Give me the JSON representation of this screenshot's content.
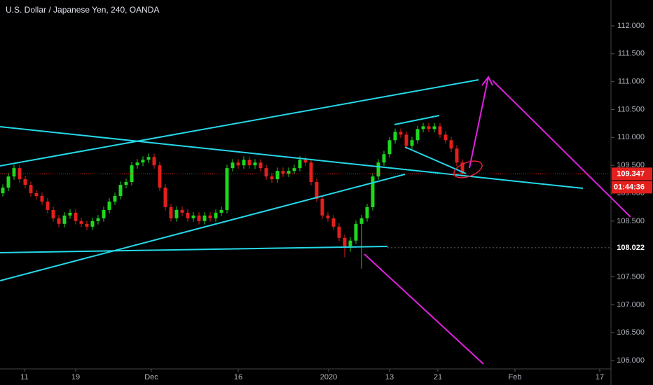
{
  "chart_data": {
    "type": "candlestick",
    "title": "U.S. Dollar / Japanese Yen, 240, OANDA",
    "up_color": "#1fd81f",
    "down_color": "#e3201d",
    "xlim": [
      -0.5,
      108.25
    ],
    "xticks": [
      {
        "value": 3.875,
        "label": "11"
      },
      {
        "value": 13,
        "label": "19"
      },
      {
        "value": 26.5,
        "label": "Dec"
      },
      {
        "value": 42,
        "label": "16"
      },
      {
        "value": 58.125,
        "label": "2020"
      },
      {
        "value": 69,
        "label": "13"
      },
      {
        "value": 77.625,
        "label": "21"
      },
      {
        "value": 91.375,
        "label": "Feb"
      },
      {
        "value": 106.5,
        "label": "17"
      }
    ],
    "ylim": [
      105.85,
      112.464
    ],
    "yticks": [
      {
        "value": 106,
        "label": "106.000"
      },
      {
        "value": 106.5,
        "label": "106.500"
      },
      {
        "value": 107,
        "label": "107.000"
      },
      {
        "value": 107.5,
        "label": "107.500"
      },
      {
        "value": 108,
        "label": "108.000"
      },
      {
        "value": 108.5,
        "label": "108.500"
      },
      {
        "value": 109,
        "label": "109.000"
      },
      {
        "value": 109.5,
        "label": "109.500"
      },
      {
        "value": 110,
        "label": "110.000"
      },
      {
        "value": 110.5,
        "label": "110.500"
      },
      {
        "value": 111,
        "label": "111.000"
      },
      {
        "value": 111.5,
        "label": "111.500"
      },
      {
        "value": 112,
        "label": "112.000"
      }
    ],
    "last_price": 109.347,
    "countdown": "01:44:36",
    "marked_price": 108.022,
    "open": [
      109.0,
      109.1,
      109.3,
      109.45,
      109.25,
      109.15,
      109.0,
      108.95,
      108.85,
      108.7,
      108.55,
      108.45,
      108.6,
      108.65,
      108.5,
      108.45,
      108.4,
      108.5,
      108.55,
      108.7,
      108.85,
      108.95,
      109.15,
      109.2,
      109.5,
      109.55,
      109.6,
      109.65,
      109.5,
      109.1,
      108.75,
      108.55,
      108.7,
      108.65,
      108.55,
      108.6,
      108.5,
      108.6,
      108.55,
      108.65,
      108.7,
      109.45,
      109.55,
      109.5,
      109.6,
      109.5,
      109.55,
      109.45,
      109.3,
      109.25,
      109.4,
      109.35,
      109.4,
      109.45,
      109.6,
      109.55,
      109.2,
      108.9,
      108.6,
      108.55,
      108.4,
      108.2,
      108.05,
      108.15,
      108.45,
      108.55,
      108.75,
      109.3,
      109.55,
      109.7,
      109.95,
      110.1,
      110.05,
      109.85,
      109.95,
      110.15,
      110.2,
      110.15,
      110.2,
      110.05,
      109.95,
      109.8,
      109.55
    ],
    "high": [
      109.16,
      109.36,
      109.51,
      109.51,
      109.31,
      109.21,
      109.06,
      109.01,
      108.91,
      108.76,
      108.61,
      108.66,
      108.71,
      108.71,
      108.56,
      108.51,
      108.56,
      108.61,
      108.76,
      108.91,
      109.01,
      109.21,
      109.26,
      109.56,
      109.61,
      109.66,
      109.71,
      109.71,
      109.56,
      109.16,
      108.81,
      108.76,
      108.76,
      108.71,
      108.66,
      108.66,
      108.66,
      108.66,
      108.71,
      108.76,
      109.51,
      109.61,
      109.61,
      109.66,
      109.66,
      109.61,
      109.61,
      109.51,
      109.36,
      109.46,
      109.46,
      109.46,
      109.51,
      109.66,
      109.66,
      109.61,
      109.26,
      108.96,
      108.66,
      108.61,
      108.46,
      108.26,
      108.21,
      108.51,
      108.61,
      108.81,
      109.36,
      109.61,
      109.76,
      110.01,
      110.16,
      110.16,
      110.11,
      110.01,
      110.21,
      110.26,
      110.26,
      110.26,
      110.26,
      110.11,
      110.01,
      109.86,
      109.61
    ],
    "low": [
      108.94,
      109.04,
      109.24,
      109.19,
      109.09,
      108.94,
      108.89,
      108.79,
      108.64,
      108.49,
      108.39,
      108.39,
      108.54,
      108.44,
      108.39,
      108.34,
      108.34,
      108.44,
      108.49,
      108.64,
      108.79,
      108.89,
      109.09,
      109.14,
      109.44,
      109.49,
      109.54,
      109.44,
      109.04,
      108.69,
      108.49,
      108.49,
      108.59,
      108.49,
      108.49,
      108.44,
      108.44,
      108.49,
      108.49,
      108.59,
      108.64,
      109.39,
      109.44,
      109.44,
      109.44,
      109.44,
      109.39,
      109.24,
      109.19,
      109.19,
      109.29,
      109.29,
      109.34,
      109.39,
      109.49,
      109.14,
      108.84,
      108.54,
      108.49,
      108.34,
      108.14,
      107.85,
      107.95,
      108.09,
      107.65,
      108.49,
      108.69,
      109.24,
      109.49,
      109.64,
      109.89,
      109.99,
      109.79,
      109.79,
      109.89,
      110.09,
      110.09,
      110.09,
      109.99,
      109.89,
      109.74,
      109.49,
      109.29
    ],
    "close": [
      109.1,
      109.3,
      109.45,
      109.25,
      109.15,
      109.0,
      108.95,
      108.85,
      108.7,
      108.55,
      108.45,
      108.6,
      108.65,
      108.5,
      108.45,
      108.4,
      108.5,
      108.55,
      108.7,
      108.85,
      108.95,
      109.15,
      109.2,
      109.5,
      109.55,
      109.6,
      109.65,
      109.5,
      109.1,
      108.75,
      108.55,
      108.7,
      108.65,
      108.55,
      108.6,
      108.5,
      108.6,
      108.55,
      108.65,
      108.7,
      109.45,
      109.55,
      109.5,
      109.6,
      109.5,
      109.55,
      109.45,
      109.3,
      109.25,
      109.4,
      109.35,
      109.4,
      109.45,
      109.6,
      109.55,
      109.2,
      108.9,
      108.6,
      108.55,
      108.4,
      108.2,
      108.05,
      108.15,
      108.45,
      108.55,
      108.75,
      109.3,
      109.55,
      109.7,
      109.95,
      110.1,
      110.05,
      109.85,
      109.95,
      110.15,
      110.2,
      110.15,
      110.2,
      110.05,
      109.95,
      109.8,
      109.55,
      109.35
    ]
  }
}
